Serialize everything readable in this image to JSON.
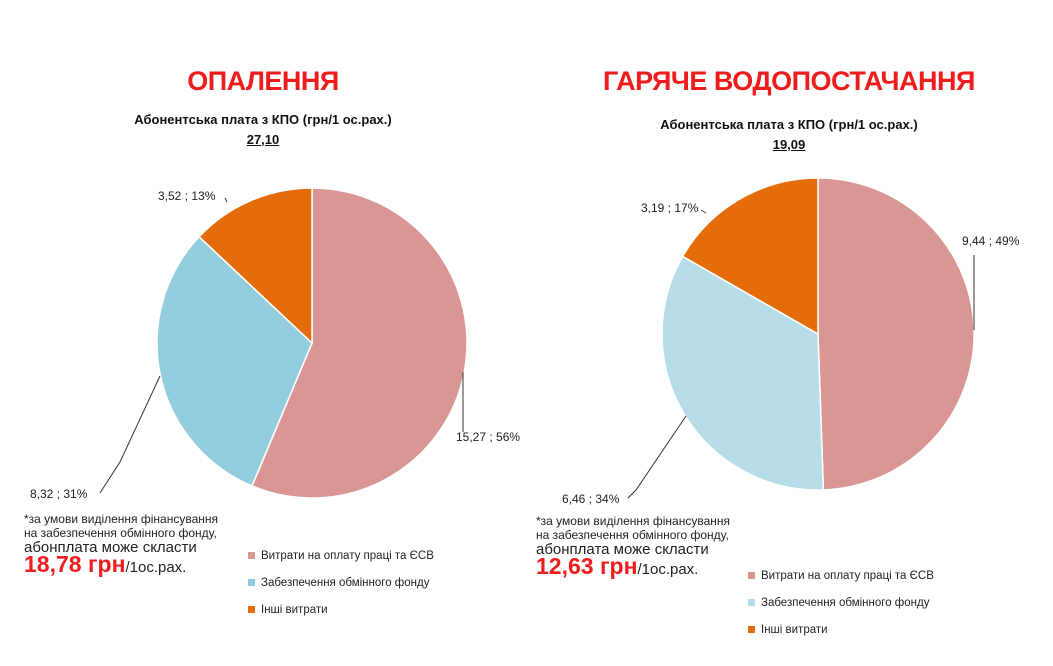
{
  "chart_data": [
    {
      "type": "pie",
      "title": "ОПАЛЕННЯ",
      "subtitle": "Абонентська плата з КПО (грн/1 ос.рах.)",
      "total": "27,10",
      "slices": [
        {
          "name": "Витрати на оплату праці та ЄСВ",
          "value": 15.27,
          "percent": 56,
          "label": "15,27 ; 56%",
          "color": "#d99694"
        },
        {
          "name": "Забезпечення обмінного фонду",
          "value": 8.32,
          "percent": 31,
          "label": "8,32 ; 31%",
          "color": "#93cddd"
        },
        {
          "name": "Інші витрати",
          "value": 3.52,
          "percent": 13,
          "label": "3,52 ; 13%",
          "color": "#e46c0a"
        }
      ],
      "note": {
        "conditional": "*за умови виділення фінансування на забезпечення обмінного фонду,",
        "amount_line": "абонплата може скласти",
        "amount": "18,78 грн",
        "unit": "/1ос.рах."
      },
      "legend": {
        "items": [
          {
            "label": "Витрати на оплату праці та ЄСВ",
            "color": "#d99694"
          },
          {
            "label": "Забезпечення обмінного фонду",
            "color": "#93cddd"
          },
          {
            "label": "Інші витрати",
            "color": "#e46c0a"
          }
        ]
      }
    },
    {
      "type": "pie",
      "title": "ГАРЯЧЕ ВОДОПОСТАЧАННЯ",
      "subtitle": "Абонентська плата з КПО (грн/1 ос.рах.)",
      "total": "19,09",
      "slices": [
        {
          "name": "Витрати на оплату праці та ЄСВ",
          "value": 9.44,
          "percent": 49,
          "label": "9,44 ; 49%",
          "color": "#d99694"
        },
        {
          "name": "Забезпечення обмінного фонду",
          "value": 6.46,
          "percent": 34,
          "label": "6,46 ; 34%",
          "color": "#b7dee8"
        },
        {
          "name": "Інші витрати",
          "value": 3.19,
          "percent": 17,
          "label": "3,19 ; 17%",
          "color": "#e46c0a"
        }
      ],
      "note": {
        "conditional": "*за умови виділення фінансування на забезпечення обмінного фонду,",
        "amount_line": "абонплата може скласти",
        "amount": "12,63 грн",
        "unit": "/1ос.рах."
      },
      "legend": {
        "items": [
          {
            "label": "Витрати на оплату праці та ЄСВ",
            "color": "#d99694"
          },
          {
            "label": "Забезпечення обмінного фонду",
            "color": "#b7dee8"
          },
          {
            "label": "Інші витрати",
            "color": "#e46c0a"
          }
        ]
      }
    }
  ]
}
